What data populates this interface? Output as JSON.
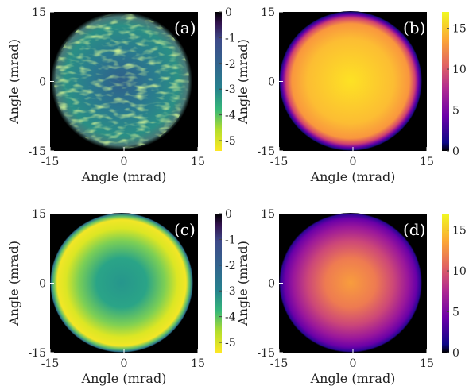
{
  "chart_data": [
    {
      "type": "heatmap",
      "panel_label": "(a)",
      "xlabel": "Angle (mrad)",
      "ylabel": "Angle (mrad)",
      "xticks": [
        "-15",
        "0",
        "15"
      ],
      "yticks": [
        "15",
        "0",
        "-15"
      ],
      "xlim": [
        -15,
        15
      ],
      "ylim": [
        -15,
        15
      ],
      "colorbar": {
        "ticks": [
          "0",
          "-1",
          "-2",
          "-3",
          "-4",
          "-5"
        ],
        "range": [
          -5.4,
          0
        ],
        "colormap": "viridis-reversed"
      },
      "content": "speckled disk of radius ~13 mrad, values mostly -2 to -4",
      "background": "#000000"
    },
    {
      "type": "heatmap",
      "panel_label": "(b)",
      "xlabel": "Angle (mrad)",
      "ylabel": "Angle (mrad)",
      "xticks": [
        "-15",
        "0",
        "15"
      ],
      "yticks": [
        "15",
        "0",
        "-15"
      ],
      "xlim": [
        -15,
        15
      ],
      "ylim": [
        -15,
        15
      ],
      "colorbar": {
        "ticks": [
          "15",
          "10",
          "5",
          "0"
        ],
        "range": [
          0,
          17
        ],
        "colormap": "plasma"
      },
      "content": "smooth disk of radius ~13 mrad, peak ~16 at center",
      "background": "#000000"
    },
    {
      "type": "heatmap",
      "panel_label": "(c)",
      "xlabel": "Angle (mrad)",
      "ylabel": "Angle (mrad)",
      "xticks": [
        "-15",
        "0",
        "15"
      ],
      "yticks": [
        "15",
        "0",
        "-15"
      ],
      "xlim": [
        -15,
        15
      ],
      "ylim": [
        -15,
        15
      ],
      "colorbar": {
        "ticks": [
          "0",
          "-1",
          "-2",
          "-3",
          "-4",
          "-5"
        ],
        "range": [
          -5.4,
          0
        ],
        "colormap": "viridis-reversed"
      },
      "content": "smooth disk of radius ~13 mrad, ~-3 at center, ~-5 near edge",
      "background": "#000000"
    },
    {
      "type": "heatmap",
      "panel_label": "(d)",
      "xlabel": "Angle (mrad)",
      "ylabel": "Angle (mrad)",
      "xticks": [
        "-15",
        "0",
        "15"
      ],
      "yticks": [
        "15",
        "0",
        "-15"
      ],
      "xlim": [
        -15,
        15
      ],
      "ylim": [
        -15,
        15
      ],
      "colorbar": {
        "ticks": [
          "15",
          "10",
          "5",
          "0"
        ],
        "range": [
          0,
          17
        ],
        "colormap": "plasma"
      },
      "content": "smooth disk of radius ~13 mrad, ~13 at center, ~4 near edge",
      "background": "#000000"
    }
  ]
}
